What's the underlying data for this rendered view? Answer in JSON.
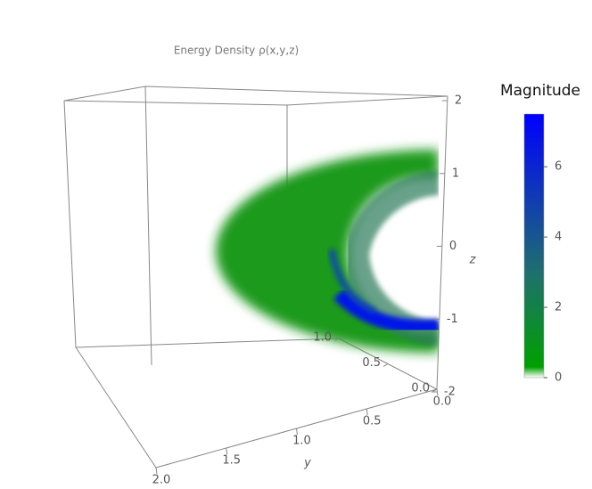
{
  "chart_data": {
    "type": "volume",
    "title": "Energy Density ρ(x,y,z)",
    "colorbar_title": "Magnitude",
    "clim": [
      0,
      7.5
    ],
    "cticks": [
      0,
      2,
      4,
      6
    ],
    "colorscale": [
      [
        0,
        "#ffffff"
      ],
      [
        0.3,
        "#00a000"
      ],
      [
        3,
        "#1f6f6f"
      ],
      [
        7.5,
        "#0000ff"
      ]
    ],
    "zlabel": "z",
    "zlim": [
      -2,
      2
    ],
    "zticks": [
      2,
      1,
      0,
      -1,
      -2
    ],
    "ylabel": "y",
    "ylim": [
      0,
      2
    ],
    "yticks": [
      {
        "value": 2,
        "label": "2.0"
      },
      1.5,
      {
        "value": 1,
        "label": "1.0"
      },
      0.5,
      {
        "value": 0,
        "label": "0.0"
      }
    ],
    "xlim": [
      0,
      1
    ],
    "xticks": [
      {
        "value": 1,
        "label": "1.0"
      },
      0.5,
      {
        "value": 0,
        "label": "0.0"
      }
    ]
  }
}
